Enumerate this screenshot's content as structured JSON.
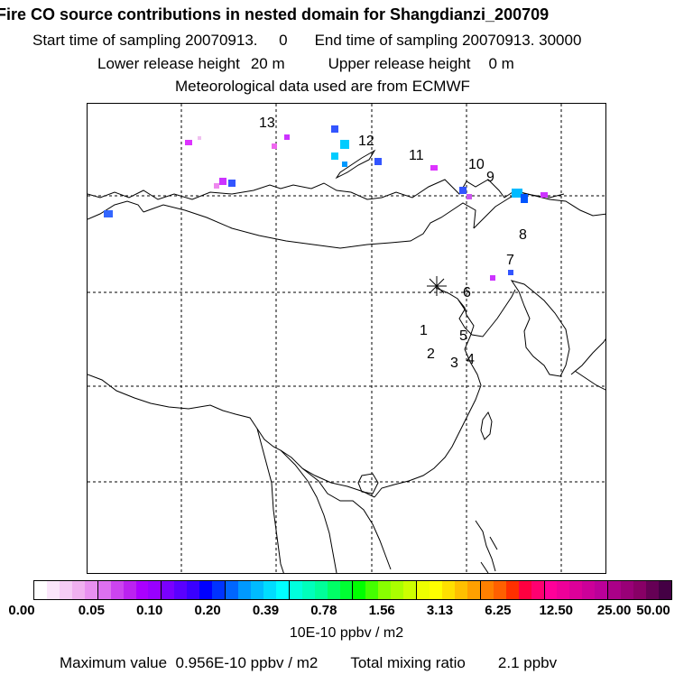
{
  "header": {
    "title": "Fire CO source contributions in nested domain for Shangdianzi_200709",
    "start_label": "Start time of sampling",
    "start_value": "20070913.     0",
    "end_label": "End time of sampling",
    "end_value": "20070913. 30000",
    "lower_label": "Lower release height",
    "lower_value": "20 m",
    "upper_label": "Upper release height",
    "upper_value": "0 m",
    "met": "Meteorological data used are from ECMWF"
  },
  "map": {
    "region_labels": [
      "13",
      "12",
      "11",
      "10",
      "9",
      "8",
      "7",
      "6",
      "5",
      "1",
      "2",
      "3",
      "4"
    ],
    "receptor_marker": "asterisk"
  },
  "colorbar": {
    "tick_labels": [
      "0.00",
      "0.05",
      "0.10",
      "0.20",
      "0.39",
      "0.78",
      "1.56",
      "3.13",
      "6.25",
      "12.50",
      "25.00",
      "50.00"
    ],
    "colors": [
      "#ffffff",
      "#fbe6fb",
      "#f6ccf6",
      "#f0b0f0",
      "#e890f0",
      "#dd70f0",
      "#cc44f0",
      "#bb22f0",
      "#aa00ff",
      "#9900ff",
      "#7a00ff",
      "#5a00ff",
      "#3a00ff",
      "#0000ff",
      "#0033ff",
      "#0066ff",
      "#0099ff",
      "#00bbff",
      "#00ddff",
      "#00ffff",
      "#00ffdd",
      "#00ffbb",
      "#00ff99",
      "#00ff66",
      "#00ff33",
      "#00ff00",
      "#44ff00",
      "#88ff00",
      "#aaff00",
      "#ccff00",
      "#eeff00",
      "#ffff00",
      "#ffe000",
      "#ffc000",
      "#ffa000",
      "#ff8000",
      "#ff6000",
      "#ff3000",
      "#ff0040",
      "#ff0070",
      "#ff0099",
      "#ee0099",
      "#dd0099",
      "#cc0099",
      "#bb0099",
      "#aa0088",
      "#990077",
      "#880066",
      "#660055",
      "#440044"
    ],
    "units": "10E-10 ppbv / m2"
  },
  "footer": {
    "max_label": "Maximum value",
    "max_value": "0.956E-10 ppbv / m2",
    "total_label": "Total mixing ratio",
    "total_value": "2.1 ppbv"
  }
}
